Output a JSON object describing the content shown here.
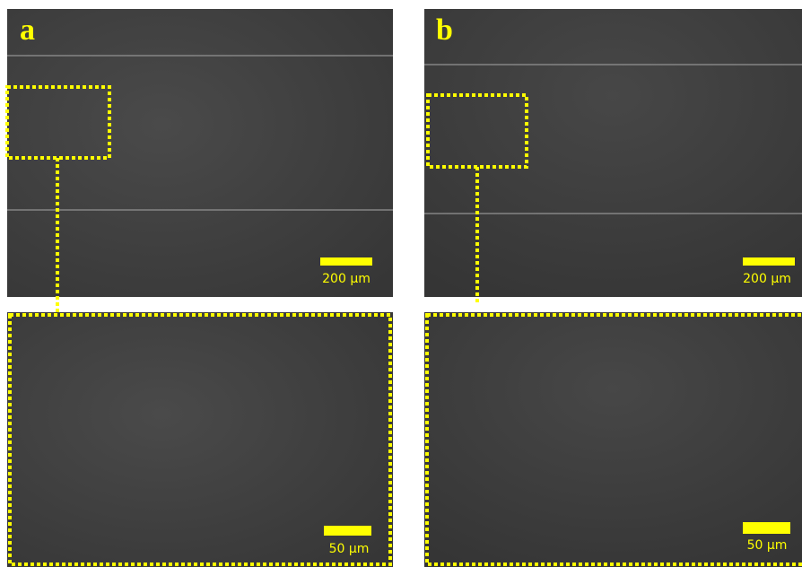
{
  "panels": [
    {
      "label": "a",
      "overview_scale": "200 µm",
      "zoom_scale": "50 µm"
    },
    {
      "label": "b",
      "overview_scale": "200 µm",
      "zoom_scale": "50 µm"
    }
  ]
}
